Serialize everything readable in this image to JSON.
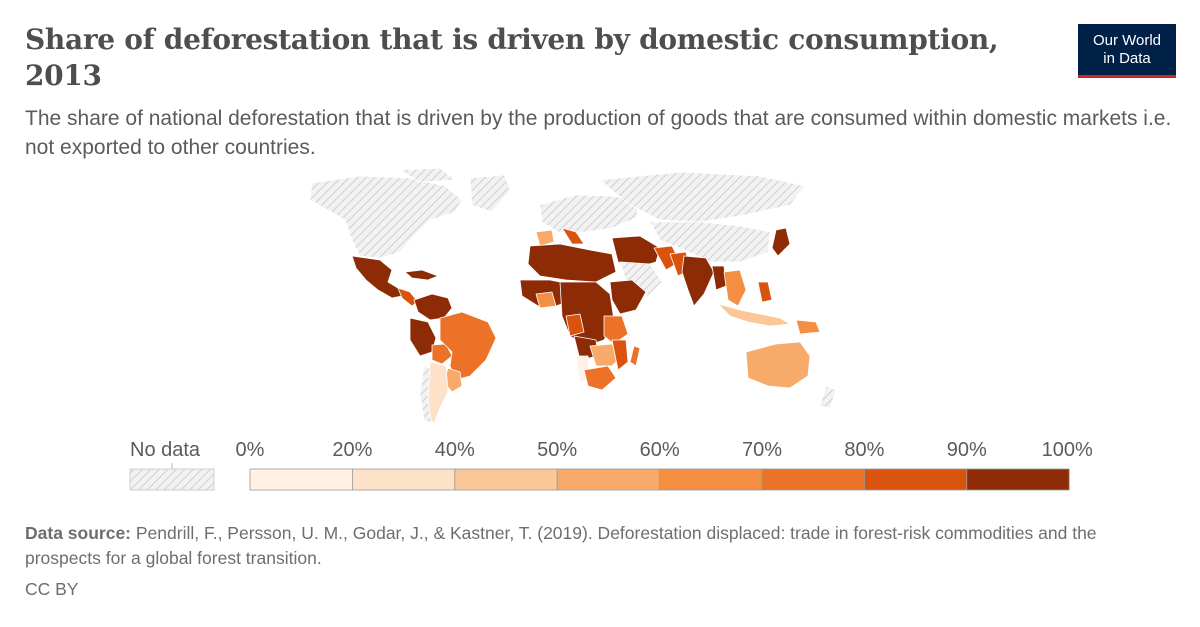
{
  "header": {
    "title": "Share of deforestation that is driven by domestic consumption, 2013",
    "subtitle": "The share of national deforestation that is driven by the production of goods that are consumed within domestic markets i.e. not exported to other countries.",
    "logo_line1": "Our World",
    "logo_line2": "in Data"
  },
  "legend": {
    "no_data_label": "No data",
    "bins": [
      {
        "label": "0%",
        "color": "#fff1e6"
      },
      {
        "label": "20%",
        "color": "#fde1c9"
      },
      {
        "label": "40%",
        "color": "#fbc796"
      },
      {
        "label": "50%",
        "color": "#f8aa6a"
      },
      {
        "label": "60%",
        "color": "#f38e43"
      },
      {
        "label": "70%",
        "color": "#eb7226"
      },
      {
        "label": "80%",
        "color": "#d9530e"
      },
      {
        "label": "90%",
        "color": "#8e2b07"
      }
    ],
    "final_label": "100%"
  },
  "colors": {
    "no_data_fill": "#ececec",
    "hatch": "#c8c8c8",
    "border": "#ffffff"
  },
  "footer": {
    "source_label": "Data source:",
    "source_text": " Pendrill, F., Persson, U. M., Godar, J., & Kastner, T. (2019). Deforestation displaced: trade in forest-risk commodities and the prospects for a global forest transition.",
    "license": "CC BY"
  }
}
